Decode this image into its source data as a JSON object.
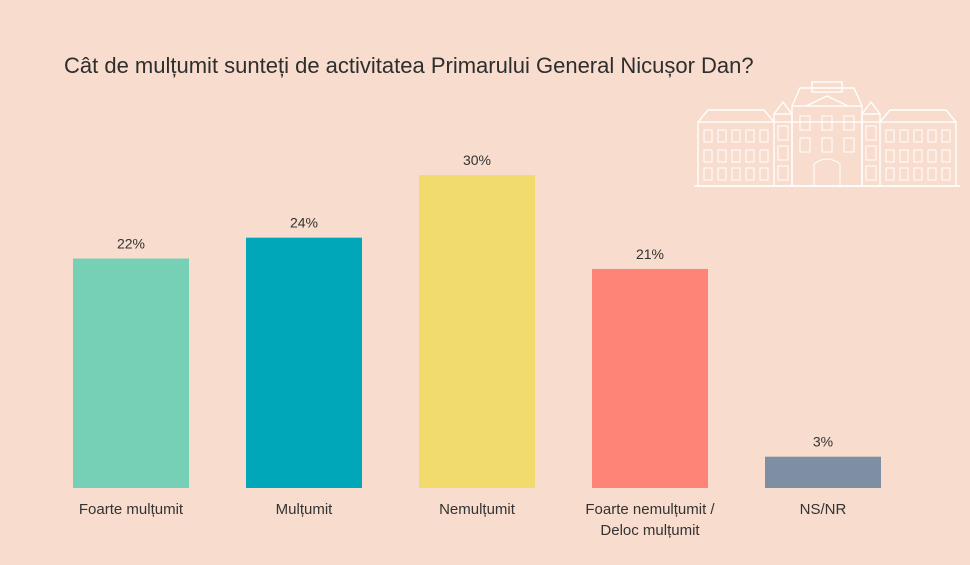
{
  "chart_data": {
    "type": "bar",
    "title": "Cât de mulțumit sunteți de activitatea Primarului General Nicușor Dan?",
    "categories": [
      [
        "Foarte mulțumit"
      ],
      [
        "Mulțumit"
      ],
      [
        "Nemulțumit"
      ],
      [
        "Foarte nemulțumit /",
        "Deloc mulțumit"
      ],
      [
        "NS/NR"
      ]
    ],
    "values": [
      22,
      24,
      30,
      21,
      3
    ],
    "value_labels": [
      "22%",
      "24%",
      "30%",
      "21%",
      "3%"
    ],
    "colors": [
      "#76d0b5",
      "#00a7b9",
      "#f0db6c",
      "#fd8476",
      "#7e8ea3"
    ],
    "unit": "%",
    "grid": false,
    "legend": "none"
  },
  "colors": {
    "background": "#f8dccd",
    "text": "#2e2e2e",
    "watermark": "#ffffff"
  },
  "decoration": {
    "icon": "city-hall-building-icon"
  }
}
